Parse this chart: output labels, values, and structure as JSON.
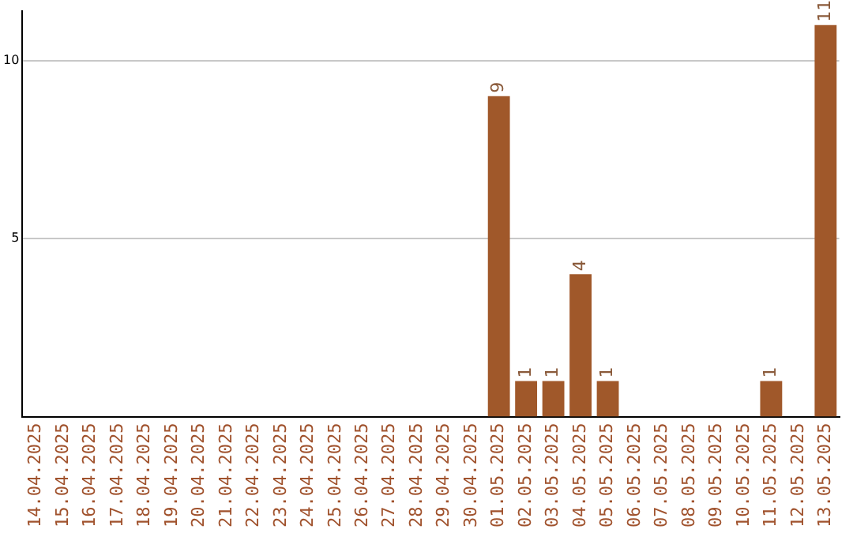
{
  "chart_data": {
    "type": "bar",
    "categories": [
      "14.04.2025",
      "15.04.2025",
      "16.04.2025",
      "17.04.2025",
      "18.04.2025",
      "19.04.2025",
      "20.04.2025",
      "21.04.2025",
      "22.04.2025",
      "23.04.2025",
      "24.04.2025",
      "25.04.2025",
      "26.04.2025",
      "27.04.2025",
      "28.04.2025",
      "29.04.2025",
      "30.04.2025",
      "01.05.2025",
      "02.05.2025",
      "03.05.2025",
      "04.05.2025",
      "05.05.2025",
      "06.05.2025",
      "07.05.2025",
      "08.05.2025",
      "09.05.2025",
      "10.05.2025",
      "11.05.2025",
      "12.05.2025",
      "13.05.2025"
    ],
    "values": [
      0,
      0,
      0,
      0,
      0,
      0,
      0,
      0,
      0,
      0,
      0,
      0,
      0,
      0,
      0,
      0,
      0,
      9,
      1,
      1,
      4,
      1,
      0,
      0,
      0,
      0,
      0,
      1,
      0,
      11
    ],
    "value_labels": [
      null,
      null,
      null,
      null,
      null,
      null,
      null,
      null,
      null,
      null,
      null,
      null,
      null,
      null,
      null,
      null,
      null,
      "9",
      "1",
      "1",
      "4",
      "1",
      null,
      null,
      null,
      null,
      null,
      "1",
      null,
      "11"
    ],
    "color": "#a0582a",
    "ylim": [
      0,
      11.4
    ],
    "yticks": [
      5,
      10
    ],
    "grid": "y",
    "legend": false
  }
}
